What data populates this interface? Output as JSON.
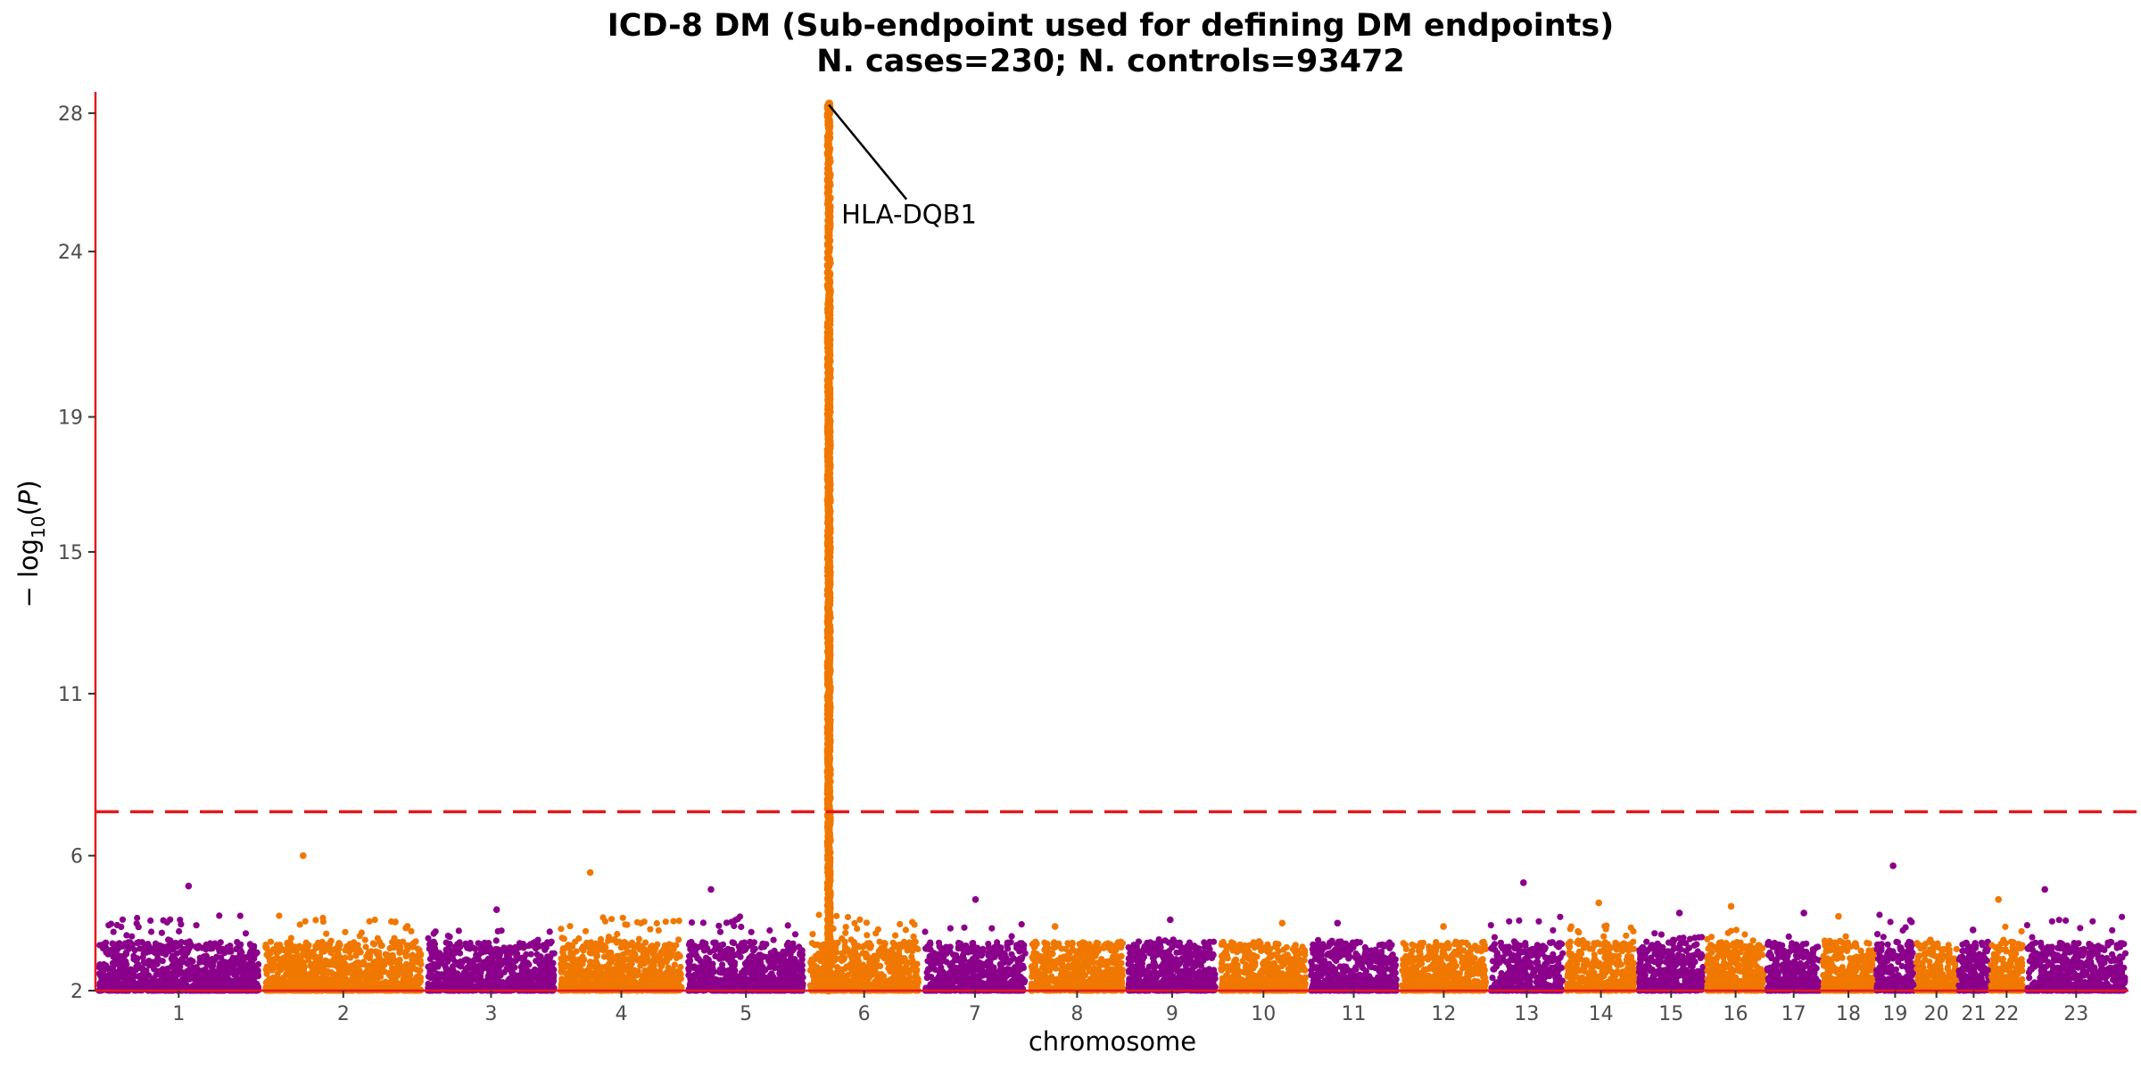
{
  "chart_data": {
    "type": "scatter",
    "subtype": "manhattan",
    "title": "ICD-8 DM (Sub-endpoint used for defining DM endpoints)",
    "subtitle": "N. cases=230; N. controls=93472",
    "xlabel": "chromosome",
    "ylabel": {
      "prefix": "− log",
      "sub": "10",
      "open": "(",
      "var": "P",
      "close": ")"
    },
    "ylim": [
      2,
      28.5
    ],
    "yticks": [
      "2",
      "6",
      "11",
      "15",
      "19",
      "24",
      "28"
    ],
    "ytick_values": [
      2,
      6,
      10.8,
      15,
      19,
      23.9,
      28
    ],
    "threshold": 7.3,
    "threshold_color": "#e31a1c",
    "axis_color": "#e31a1c",
    "colors": [
      "#8b008b",
      "#f07800"
    ],
    "grid": false,
    "legend": "none",
    "chromosomes": [
      {
        "label": "1",
        "len": 248,
        "max": 5.1
      },
      {
        "label": "2",
        "len": 242,
        "max": 6.0
      },
      {
        "label": "3",
        "len": 198,
        "max": 4.4
      },
      {
        "label": "4",
        "len": 190,
        "max": 5.5
      },
      {
        "label": "5",
        "len": 181,
        "max": 5.0
      },
      {
        "label": "6",
        "len": 171,
        "max": 28.3
      },
      {
        "label": "7",
        "len": 159,
        "max": 4.7
      },
      {
        "label": "8",
        "len": 145,
        "max": 3.9
      },
      {
        "label": "9",
        "len": 138,
        "max": 4.1
      },
      {
        "label": "10",
        "len": 134,
        "max": 4.0
      },
      {
        "label": "11",
        "len": 135,
        "max": 4.0
      },
      {
        "label": "12",
        "len": 133,
        "max": 3.9
      },
      {
        "label": "13",
        "len": 114,
        "max": 5.2
      },
      {
        "label": "14",
        "len": 107,
        "max": 4.6
      },
      {
        "label": "15",
        "len": 102,
        "max": 4.3
      },
      {
        "label": "16",
        "len": 90,
        "max": 4.5
      },
      {
        "label": "17",
        "len": 83,
        "max": 4.3
      },
      {
        "label": "18",
        "len": 80,
        "max": 4.2
      },
      {
        "label": "19",
        "len": 59,
        "max": 5.7
      },
      {
        "label": "20",
        "len": 64,
        "max": 3.5
      },
      {
        "label": "21",
        "len": 47,
        "max": 3.8
      },
      {
        "label": "22",
        "len": 51,
        "max": 4.7
      },
      {
        "label": "23",
        "len": 156,
        "max": 5.0
      }
    ],
    "peak": {
      "chromosome": "6",
      "pos": 33,
      "y": 28.3
    },
    "annotations": [
      {
        "text": "HLA-DQB1",
        "chromosome": "6",
        "pos": 33,
        "y": 28.3
      }
    ]
  }
}
